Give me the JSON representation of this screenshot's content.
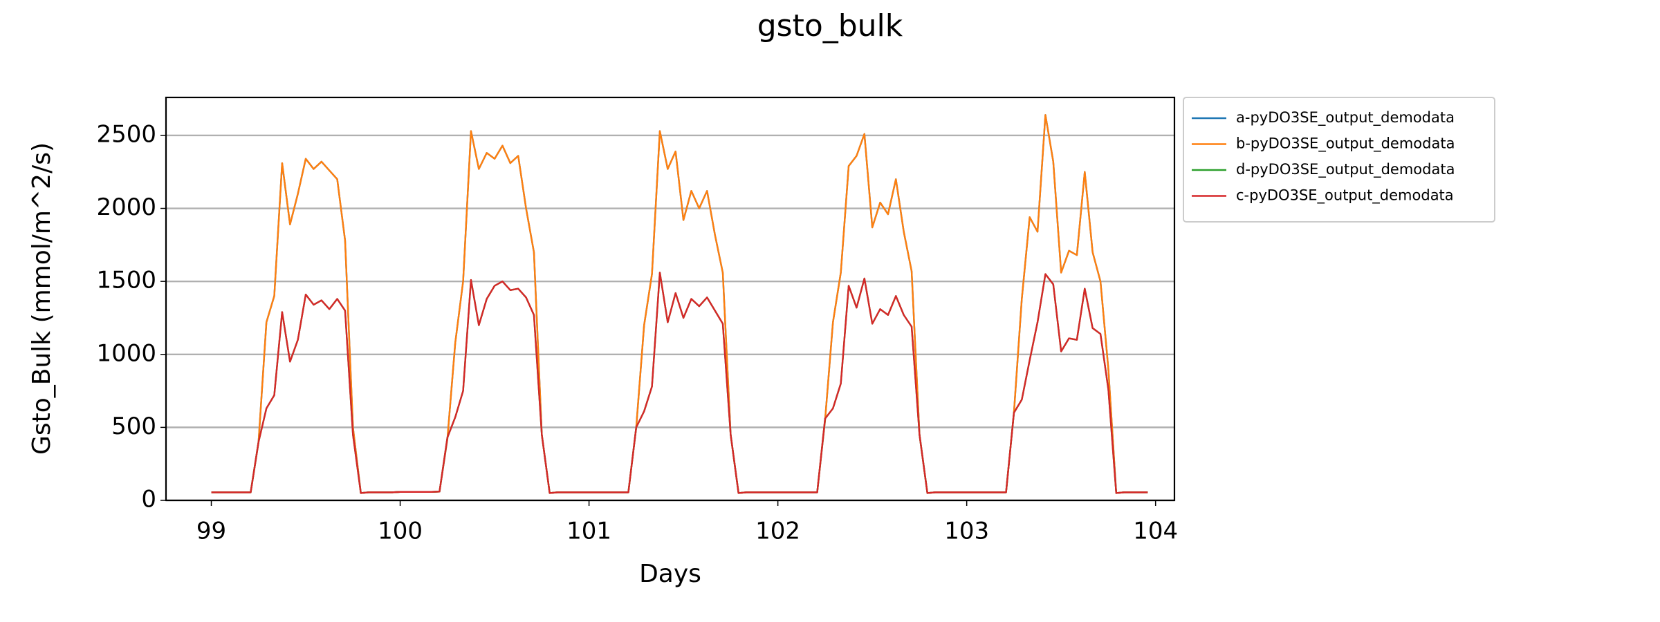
{
  "chart_data": {
    "type": "line",
    "title": "gsto_bulk",
    "xlabel": "Days",
    "ylabel": "Gsto_Bulk (mmol/m^2/s)",
    "x": [
      99,
      99.0417,
      99.0833,
      99.125,
      99.1667,
      99.2083,
      99.25,
      99.2917,
      99.3333,
      99.375,
      99.4167,
      99.4583,
      99.5,
      99.5417,
      99.5833,
      99.625,
      99.6667,
      99.7083,
      99.75,
      99.7917,
      99.8333,
      99.875,
      99.9167,
      99.9583,
      100,
      100.0417,
      100.0833,
      100.125,
      100.1667,
      100.2083,
      100.25,
      100.2917,
      100.3333,
      100.375,
      100.4167,
      100.4583,
      100.5,
      100.5417,
      100.5833,
      100.625,
      100.6667,
      100.7083,
      100.75,
      100.7917,
      100.8333,
      100.875,
      100.9167,
      100.9583,
      101,
      101.0417,
      101.0833,
      101.125,
      101.1667,
      101.2083,
      101.25,
      101.2917,
      101.3333,
      101.375,
      101.4167,
      101.4583,
      101.5,
      101.5417,
      101.5833,
      101.625,
      101.6667,
      101.7083,
      101.75,
      101.7917,
      101.8333,
      101.875,
      101.9167,
      101.9583,
      102,
      102.0417,
      102.0833,
      102.125,
      102.1667,
      102.2083,
      102.25,
      102.2917,
      102.3333,
      102.375,
      102.4167,
      102.4583,
      102.5,
      102.5417,
      102.5833,
      102.625,
      102.6667,
      102.7083,
      102.75,
      102.7917,
      102.8333,
      102.875,
      102.9167,
      102.9583,
      103,
      103.0417,
      103.0833,
      103.125,
      103.1667,
      103.2083,
      103.25,
      103.2917,
      103.3333,
      103.375,
      103.4167,
      103.4583,
      103.5,
      103.5417,
      103.5833,
      103.625,
      103.6667,
      103.7083,
      103.75,
      103.7917,
      103.8333,
      103.875,
      103.9167,
      103.9583
    ],
    "series": [
      {
        "name": "a-pyDO3SE_output_demodata",
        "color": "#1f77b4",
        "values": [
          55,
          55,
          55,
          55,
          55,
          55,
          400,
          1220,
          1400,
          2310,
          1890,
          2100,
          2340,
          2270,
          2320,
          2260,
          2200,
          1780,
          500,
          50,
          55,
          55,
          55,
          55,
          58,
          58,
          58,
          58,
          58,
          60,
          420,
          1080,
          1500,
          2530,
          2270,
          2380,
          2340,
          2430,
          2310,
          2360,
          2000,
          1700,
          450,
          50,
          55,
          55,
          55,
          55,
          55,
          55,
          55,
          55,
          55,
          55,
          500,
          1200,
          1550,
          2530,
          2270,
          2390,
          1920,
          2120,
          2000,
          2120,
          1820,
          1560,
          450,
          50,
          55,
          55,
          55,
          55,
          55,
          55,
          55,
          55,
          55,
          55,
          550,
          1220,
          1560,
          2290,
          2360,
          2510,
          1870,
          2040,
          1960,
          2200,
          1840,
          1570,
          450,
          50,
          55,
          55,
          55,
          55,
          55,
          55,
          55,
          55,
          55,
          55,
          600,
          1380,
          1940,
          1840,
          2640,
          2320,
          1560,
          1710,
          1680,
          2250,
          1700,
          1500,
          900,
          50,
          55,
          55,
          55,
          55
        ]
      },
      {
        "name": "b-pyDO3SE_output_demodata",
        "color": "#ff7f0e",
        "values": [
          55,
          55,
          55,
          55,
          55,
          55,
          400,
          1220,
          1400,
          2310,
          1890,
          2100,
          2340,
          2270,
          2320,
          2260,
          2200,
          1780,
          500,
          50,
          55,
          55,
          55,
          55,
          58,
          58,
          58,
          58,
          58,
          60,
          420,
          1080,
          1500,
          2530,
          2270,
          2380,
          2340,
          2430,
          2310,
          2360,
          2000,
          1700,
          450,
          50,
          55,
          55,
          55,
          55,
          55,
          55,
          55,
          55,
          55,
          55,
          500,
          1200,
          1550,
          2530,
          2270,
          2390,
          1920,
          2120,
          2000,
          2120,
          1820,
          1560,
          450,
          50,
          55,
          55,
          55,
          55,
          55,
          55,
          55,
          55,
          55,
          55,
          550,
          1220,
          1560,
          2290,
          2360,
          2510,
          1870,
          2040,
          1960,
          2200,
          1840,
          1570,
          450,
          50,
          55,
          55,
          55,
          55,
          55,
          55,
          55,
          55,
          55,
          55,
          600,
          1380,
          1940,
          1840,
          2640,
          2320,
          1560,
          1710,
          1680,
          2250,
          1700,
          1500,
          900,
          50,
          55,
          55,
          55,
          55
        ]
      },
      {
        "name": "d-pyDO3SE_output_demodata",
        "color": "#2ca02c",
        "values": [
          55,
          55,
          55,
          55,
          55,
          55,
          400,
          630,
          720,
          1290,
          950,
          1100,
          1410,
          1340,
          1370,
          1310,
          1380,
          1300,
          450,
          50,
          55,
          55,
          55,
          55,
          58,
          58,
          58,
          58,
          58,
          60,
          430,
          570,
          750,
          1510,
          1200,
          1380,
          1470,
          1500,
          1440,
          1450,
          1390,
          1270,
          450,
          50,
          55,
          55,
          55,
          55,
          55,
          55,
          55,
          55,
          55,
          55,
          500,
          610,
          780,
          1560,
          1220,
          1420,
          1250,
          1380,
          1330,
          1390,
          1300,
          1210,
          450,
          50,
          55,
          55,
          55,
          55,
          55,
          55,
          55,
          55,
          55,
          55,
          560,
          630,
          800,
          1470,
          1320,
          1520,
          1210,
          1310,
          1270,
          1400,
          1270,
          1190,
          450,
          50,
          55,
          55,
          55,
          55,
          55,
          55,
          55,
          55,
          55,
          55,
          600,
          690,
          960,
          1220,
          1550,
          1480,
          1020,
          1110,
          1100,
          1450,
          1180,
          1140,
          760,
          50,
          55,
          55,
          55,
          55
        ]
      },
      {
        "name": "c-pyDO3SE_output_demodata",
        "color": "#d62728",
        "values": [
          55,
          55,
          55,
          55,
          55,
          55,
          400,
          630,
          720,
          1290,
          950,
          1100,
          1410,
          1340,
          1370,
          1310,
          1380,
          1300,
          450,
          50,
          55,
          55,
          55,
          55,
          58,
          58,
          58,
          58,
          58,
          60,
          430,
          570,
          750,
          1510,
          1200,
          1380,
          1470,
          1500,
          1440,
          1450,
          1390,
          1270,
          450,
          50,
          55,
          55,
          55,
          55,
          55,
          55,
          55,
          55,
          55,
          55,
          500,
          610,
          780,
          1560,
          1220,
          1420,
          1250,
          1380,
          1330,
          1390,
          1300,
          1210,
          450,
          50,
          55,
          55,
          55,
          55,
          55,
          55,
          55,
          55,
          55,
          55,
          560,
          630,
          800,
          1470,
          1320,
          1520,
          1210,
          1310,
          1270,
          1400,
          1270,
          1190,
          450,
          50,
          55,
          55,
          55,
          55,
          55,
          55,
          55,
          55,
          55,
          55,
          600,
          690,
          960,
          1220,
          1550,
          1480,
          1020,
          1110,
          1100,
          1450,
          1180,
          1140,
          760,
          50,
          55,
          55,
          55,
          55
        ]
      }
    ],
    "xlim": [
      98.76,
      104.1
    ],
    "xticks": [
      99,
      100,
      101,
      102,
      103,
      104
    ],
    "ylim": [
      0,
      2760
    ],
    "yticks": [
      0,
      500,
      1000,
      1500,
      2000,
      2500
    ],
    "grid": "y",
    "legend": "outside upper right"
  }
}
